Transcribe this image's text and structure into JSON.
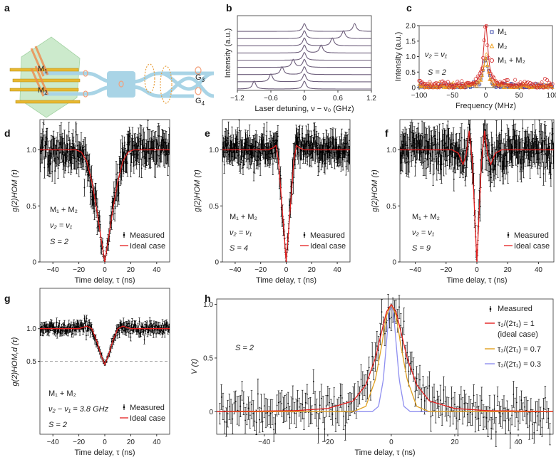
{
  "panel_letters": {
    "a": "a",
    "b": "b",
    "c": "c",
    "d": "d",
    "e": "e",
    "f": "f",
    "g": "g",
    "h": "h"
  },
  "panel_a": {
    "labels": {
      "m1": "M",
      "m1_sub": "1",
      "m2": "M",
      "m2_sub": "2",
      "g3": "G",
      "g3_sub": "3",
      "g4": "G",
      "g4_sub": "4"
    },
    "colors": {
      "waveguide": "#a9d4e6",
      "pump": "#f08a4b",
      "electrode": "#e8b830",
      "membrane": "#8fd28f",
      "emitter": "#f2a07b"
    }
  },
  "chart_data": [
    {
      "id": "b",
      "type": "line",
      "xlabel": "Laser detuning, ν − ν₀ (GHz)",
      "ylabel": "Intensity (a.u.)",
      "xlim": [
        -1.2,
        1.2
      ],
      "xticks": [
        "-1.2",
        "-0.6",
        "0",
        "0.6",
        "1.2"
      ],
      "linewidth_ghz": 0.035,
      "color": "#6e5f7c",
      "traces": [
        {
          "peaks": [
            0,
            0.9
          ]
        },
        {
          "peaks": [
            0,
            0.7
          ]
        },
        {
          "peaks": [
            0,
            0.5
          ]
        },
        {
          "peaks": [
            0,
            0.3
          ]
        },
        {
          "peaks": [
            0
          ]
        },
        {
          "peaks": [
            -0.2,
            0
          ]
        },
        {
          "peaks": [
            -0.4,
            0
          ]
        },
        {
          "peaks": [
            -0.6,
            0
          ]
        },
        {
          "peaks": [
            -0.9,
            0
          ]
        }
      ]
    },
    {
      "id": "c",
      "type": "scatter",
      "xlabel": "Frequency (MHz)",
      "ylabel": "Intensity (a.u.)",
      "xlim": [
        -100,
        100
      ],
      "ylim": [
        0,
        2.0
      ],
      "xticks": [
        "-100",
        "-50",
        "0",
        "50",
        "100"
      ],
      "yticks": [
        "0",
        "0.5",
        "1.0",
        "1.5",
        "2.0"
      ],
      "annotations": {
        "condition": "ν₂ = ν₁",
        "s": "S = 2"
      },
      "series": [
        {
          "name": "M₁",
          "marker": "square",
          "color": "#3a46a8",
          "peak": 1.0,
          "fwhm_mhz": 8,
          "background": 0.03
        },
        {
          "name": "M₂",
          "marker": "triangle",
          "color": "#f0a020",
          "peak": 1.0,
          "fwhm_mhz": 8,
          "background": 0.03
        },
        {
          "name": "M₁ + M₂",
          "marker": "circle",
          "color": "#d42a2a",
          "peak": 2.0,
          "fwhm_mhz": 8,
          "background": 0.08
        }
      ]
    },
    {
      "id": "d",
      "type": "line",
      "xlabel": "Time delay, τ (ns)",
      "ylabel": "g(2)HOM (τ)",
      "xlim": [
        -50,
        50
      ],
      "ylim": [
        0,
        1.27
      ],
      "xticks": [
        "-40",
        "-20",
        "0",
        "20",
        "40"
      ],
      "yticks": [
        "0",
        "0.5",
        "1.0"
      ],
      "annotations": {
        "pair": "M₁ + M₂",
        "condition": "ν₂ = ν₁",
        "s": "S = 2"
      },
      "legend": {
        "measured": "Measured",
        "ideal": "Ideal case"
      },
      "measured_noise_sd": 0.08,
      "time_step_ns": 0.35,
      "ideal_curve": [
        [
          -50,
          1
        ],
        [
          -22,
          1
        ],
        [
          -18,
          0.98
        ],
        [
          -14,
          0.9
        ],
        [
          -10,
          0.72
        ],
        [
          -6,
          0.45
        ],
        [
          -3,
          0.22
        ],
        [
          0,
          0
        ],
        [
          3,
          0.22
        ],
        [
          6,
          0.45
        ],
        [
          10,
          0.72
        ],
        [
          14,
          0.9
        ],
        [
          18,
          0.98
        ],
        [
          22,
          1
        ],
        [
          50,
          1
        ]
      ]
    },
    {
      "id": "e",
      "type": "line",
      "xlabel": "Time delay, τ (ns)",
      "ylabel": "g(2)HOM (τ)",
      "xlim": [
        -50,
        50
      ],
      "ylim": [
        0,
        1.27
      ],
      "xticks": [
        "-40",
        "-20",
        "0",
        "20",
        "40"
      ],
      "yticks": [
        "0",
        "0.5",
        "1.0"
      ],
      "annotations": {
        "pair": "M₁ + M₂",
        "condition": "ν₂ = ν₁",
        "s": "S = 4"
      },
      "legend": {
        "measured": "Measured",
        "ideal": "Ideal case"
      },
      "measured_noise_sd": 0.07,
      "time_step_ns": 0.3,
      "ideal_curve": [
        [
          -50,
          1
        ],
        [
          -14,
          1
        ],
        [
          -10,
          1.02
        ],
        [
          -8,
          1.04
        ],
        [
          -6,
          0.9
        ],
        [
          -4,
          0.6
        ],
        [
          -2,
          0.3
        ],
        [
          0,
          0
        ],
        [
          2,
          0.3
        ],
        [
          4,
          0.6
        ],
        [
          6,
          0.9
        ],
        [
          8,
          1.04
        ],
        [
          10,
          1.02
        ],
        [
          14,
          1
        ],
        [
          50,
          1
        ]
      ]
    },
    {
      "id": "f",
      "type": "line",
      "xlabel": "Time delay, τ (ns)",
      "ylabel": "g(2)HOM (τ)",
      "xlim": [
        -50,
        50
      ],
      "ylim": [
        0,
        1.27
      ],
      "xticks": [
        "-40",
        "-20",
        "0",
        "20",
        "40"
      ],
      "yticks": [
        "0",
        "0.5",
        "1.0"
      ],
      "annotations": {
        "pair": "M₁ + M₂",
        "condition": "ν₂ = ν₁",
        "s": "S = 9"
      },
      "legend": {
        "measured": "Measured",
        "ideal": "Ideal case"
      },
      "measured_noise_sd": 0.09,
      "time_step_ns": 0.3,
      "ideal_curve": [
        [
          -50,
          1
        ],
        [
          -16,
          1
        ],
        [
          -12,
          0.97
        ],
        [
          -9,
          0.87
        ],
        [
          -7,
          0.95
        ],
        [
          -5,
          1.17
        ],
        [
          -3,
          0.9
        ],
        [
          -1.5,
          0.45
        ],
        [
          0,
          0
        ],
        [
          1.5,
          0.45
        ],
        [
          3,
          0.9
        ],
        [
          5,
          1.17
        ],
        [
          7,
          0.95
        ],
        [
          9,
          0.87
        ],
        [
          12,
          0.97
        ],
        [
          16,
          1
        ],
        [
          50,
          1
        ]
      ]
    },
    {
      "id": "g",
      "type": "line",
      "xlabel": "Time delay, τ (ns)",
      "ylabel": "g(2)HOM,d (τ)",
      "xlim": [
        -50,
        50
      ],
      "ylim": [
        -0.62,
        1.62
      ],
      "xticks": [
        "-40",
        "-20",
        "0",
        "20",
        "40"
      ],
      "yticks": [
        "0.5",
        "1.0"
      ],
      "reference_line": 0.5,
      "annotations": {
        "pair": "M₁ + M₂",
        "condition": "ν₂ − ν₁ = 3.8 GHz",
        "s": "S = 2"
      },
      "legend": {
        "measured": "Measured",
        "ideal": "Ideal case"
      },
      "measured_noise_sd": 0.05,
      "time_step_ns": 0.35,
      "ideal_curve": [
        [
          -50,
          1
        ],
        [
          -20,
          1
        ],
        [
          -14,
          1.04
        ],
        [
          -10,
          1.0
        ],
        [
          -6,
          0.8
        ],
        [
          -3,
          0.6
        ],
        [
          0,
          0.45
        ],
        [
          3,
          0.6
        ],
        [
          6,
          0.8
        ],
        [
          10,
          1.0
        ],
        [
          14,
          1.04
        ],
        [
          20,
          1
        ],
        [
          50,
          1
        ]
      ]
    },
    {
      "id": "h",
      "type": "line",
      "xlabel": "Time delay, τ (ns)",
      "ylabel": "V (τ)",
      "xlim": [
        -55,
        51
      ],
      "ylim": [
        -0.21,
        1.05
      ],
      "xticks": [
        "-40",
        "-20",
        "0",
        "20",
        "40"
      ],
      "yticks": [
        "0",
        "0.5",
        "1.0"
      ],
      "annotations": {
        "s": "S = 2"
      },
      "measured_noise_sd": 0.1,
      "time_step_ns": 0.5,
      "legend": {
        "measured": "Measured",
        "r1": "τ₂/(2τ₁) = 1",
        "r1_note": "(ideal case)",
        "r07": "τ₂/(2τ₁) = 0.7",
        "r03": "τ₂/(2τ₁) = 0.3"
      },
      "curves_symmetric_half": [
        {
          "name": "τ₂/(2τ₁) = 1 (ideal case)",
          "color": "#e41e1e",
          "points": [
            [
              0,
              1
            ],
            [
              1.5,
              0.93
            ],
            [
              3,
              0.75
            ],
            [
              5,
              0.5
            ],
            [
              8,
              0.25
            ],
            [
              12,
              0.1
            ],
            [
              20,
              0.03
            ],
            [
              30,
              0.01
            ],
            [
              55,
              0
            ]
          ]
        },
        {
          "name": "τ₂/(2τ₁) = 0.7",
          "color": "#e0a020",
          "points": [
            [
              0,
              1
            ],
            [
              1.5,
              0.9
            ],
            [
              3,
              0.62
            ],
            [
              5,
              0.3
            ],
            [
              8,
              0.05
            ],
            [
              12,
              0
            ],
            [
              55,
              0
            ]
          ]
        },
        {
          "name": "τ₂/(2τ₁) = 0.3",
          "color": "#8f8ff0",
          "points": [
            [
              0,
              1
            ],
            [
              0.7,
              0.92
            ],
            [
              1.5,
              0.65
            ],
            [
              2.5,
              0.3
            ],
            [
              4,
              0.05
            ],
            [
              6,
              0
            ],
            [
              55,
              0
            ]
          ]
        }
      ]
    }
  ]
}
